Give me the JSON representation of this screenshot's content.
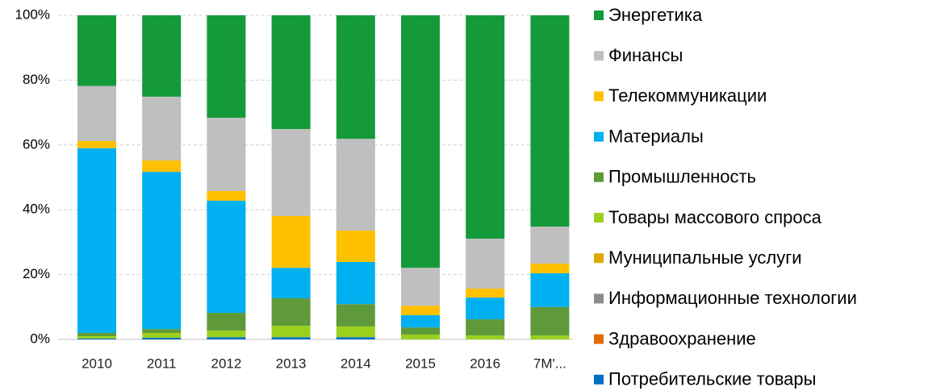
{
  "chart_data": {
    "type": "stacked_bar",
    "categories": [
      "2010",
      "2011",
      "2012",
      "2013",
      "2014",
      "2015",
      "2016",
      "7M'..."
    ],
    "ylim": [
      0,
      100
    ],
    "yticks": [
      {
        "value": 0,
        "label": "0%"
      },
      {
        "value": 20,
        "label": "20%"
      },
      {
        "value": 40,
        "label": "40%"
      },
      {
        "value": 60,
        "label": "60%"
      },
      {
        "value": 80,
        "label": "80%"
      },
      {
        "value": 100,
        "label": "100%"
      }
    ],
    "grid": true,
    "legend": "right",
    "series": [
      {
        "name": "Потребительские товары",
        "color": "#0070c0",
        "values": [
          0.3,
          0.5,
          0.7,
          0.7,
          0.7,
          0,
          0,
          0
        ]
      },
      {
        "name": "Здравоохранение",
        "color": "#e36c09",
        "values": [
          0,
          0,
          0,
          0,
          0,
          0,
          0,
          0
        ]
      },
      {
        "name": "Информационные технологии",
        "color": "#8c8c8c",
        "values": [
          0,
          0,
          0,
          0,
          0,
          0,
          0,
          0
        ]
      },
      {
        "name": "Муниципальные услуги",
        "color": "#e0a800",
        "values": [
          0,
          0,
          0,
          0,
          0,
          0,
          0,
          0
        ]
      },
      {
        "name": "Товары массового спроса",
        "color": "#9bd11e",
        "values": [
          0.7,
          1.5,
          2.0,
          3.5,
          3.3,
          1.5,
          1.2,
          1.2
        ]
      },
      {
        "name": "Промышленность",
        "color": "#5f9a3a",
        "values": [
          1.0,
          1.2,
          5.5,
          8.5,
          6.9,
          2.2,
          5.0,
          8.8
        ]
      },
      {
        "name": "Материалы",
        "color": "#00b0f0",
        "values": [
          57,
          48.5,
          34.6,
          9.4,
          13,
          3.8,
          6.7,
          10.4
        ]
      },
      {
        "name": "Телекоммуникации",
        "color": "#ffc000",
        "values": [
          2.2,
          3.5,
          3.0,
          16,
          9.7,
          2.9,
          2.8,
          3.0
        ]
      },
      {
        "name": "Финансы",
        "color": "#bfbfbf",
        "values": [
          17,
          19.7,
          22.6,
          26.8,
          28.3,
          11.7,
          15.4,
          11.4
        ]
      },
      {
        "name": "Энергетика",
        "color": "#149a39",
        "values": [
          21.8,
          25.1,
          31.6,
          35.1,
          38.1,
          77.9,
          68.9,
          65.2
        ]
      }
    ]
  }
}
